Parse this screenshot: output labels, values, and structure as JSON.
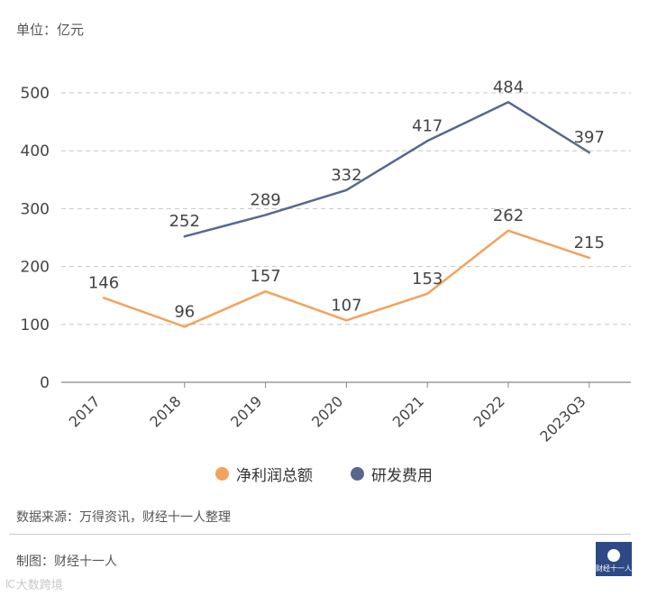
{
  "unit_label": "单位：亿元",
  "chart_data": {
    "type": "line",
    "categories": [
      "2017",
      "2018",
      "2019",
      "2020",
      "2021",
      "2022",
      "2023Q3"
    ],
    "y_ticks": [
      0,
      100,
      200,
      300,
      400,
      500
    ],
    "ylim": [
      0,
      500
    ],
    "grid": true,
    "legend_position": "bottom-center",
    "series": [
      {
        "name": "净利润总额",
        "color": "#f4a15d",
        "values": [
          146,
          96,
          157,
          107,
          153,
          262,
          215
        ]
      },
      {
        "name": "研发费用",
        "color": "#57688c",
        "values": [
          null,
          252,
          289,
          332,
          417,
          484,
          397
        ]
      }
    ]
  },
  "source_text": "数据来源：万得资讯，财经十一人整理",
  "maker_text": "制图：财经十一人",
  "watermark_text": "大数跨境",
  "watermark_glyph": "lC",
  "logo_text": "财经十一人"
}
